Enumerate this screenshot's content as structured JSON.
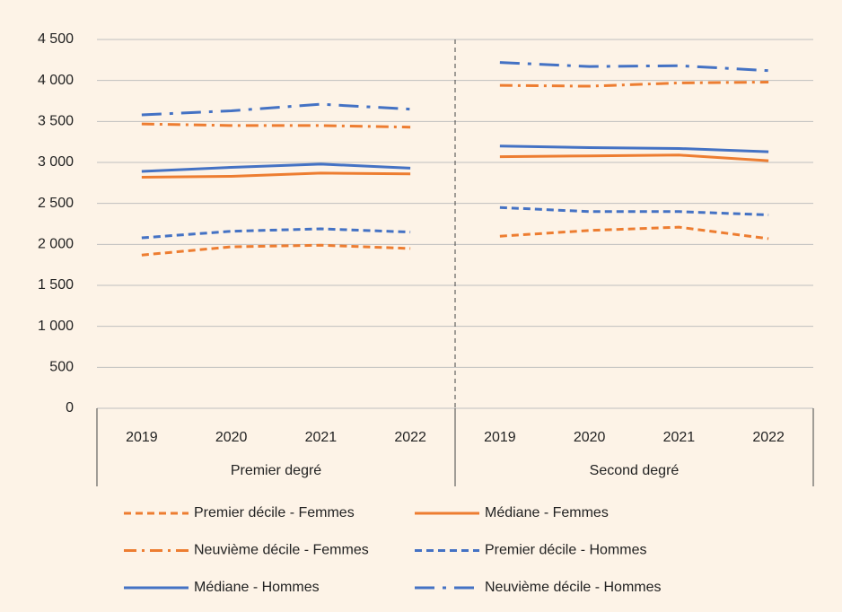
{
  "chart_data": {
    "type": "line",
    "categories": [
      "2019",
      "2020",
      "2021",
      "2022",
      "2019",
      "2020",
      "2021",
      "2022"
    ],
    "groups": [
      "Premier degré",
      "Second degré"
    ],
    "ylim": [
      0,
      4500
    ],
    "yticks": [
      0,
      500,
      {
        "value": 1000,
        "label": "1 000"
      },
      {
        "value": 1500,
        "label": "1 500"
      },
      {
        "value": 2000,
        "label": "2 000"
      },
      {
        "value": 2500,
        "label": "2 500"
      },
      {
        "value": 3000,
        "label": "3 000"
      },
      {
        "value": 3500,
        "label": "3 500"
      },
      {
        "value": 4000,
        "label": "4 000"
      },
      {
        "value": 4500,
        "label": "4 500"
      }
    ],
    "grid": true,
    "series": [
      {
        "name": "Premier décile - Femmes",
        "color": "#ed7d31",
        "dash": "dash",
        "values": [
          1870,
          1970,
          1990,
          1950,
          2100,
          2170,
          2210,
          2070
        ]
      },
      {
        "name": "Médiane - Femmes",
        "color": "#ed7d31",
        "dash": "solid",
        "values": [
          2820,
          2830,
          2870,
          2860,
          3070,
          3080,
          3090,
          3020
        ]
      },
      {
        "name": "Neuvième décile - Femmes",
        "color": "#ed7d31",
        "dash": "dashdot",
        "values": [
          3470,
          3450,
          3450,
          3430,
          3940,
          3930,
          3970,
          3980
        ]
      },
      {
        "name": "Premier décile - Hommes",
        "color": "#4472c4",
        "dash": "dash",
        "values": [
          2080,
          2160,
          2190,
          2150,
          2450,
          2400,
          2400,
          2360
        ]
      },
      {
        "name": "Médiane - Hommes",
        "color": "#4472c4",
        "dash": "solid",
        "values": [
          2890,
          2940,
          2980,
          2930,
          3200,
          3180,
          3170,
          3130
        ]
      },
      {
        "name": "Neuvième décile - Hommes",
        "color": "#4472c4",
        "dash": "longdashdot",
        "values": [
          3580,
          3630,
          3710,
          3650,
          4220,
          4170,
          4180,
          4120
        ]
      }
    ]
  }
}
